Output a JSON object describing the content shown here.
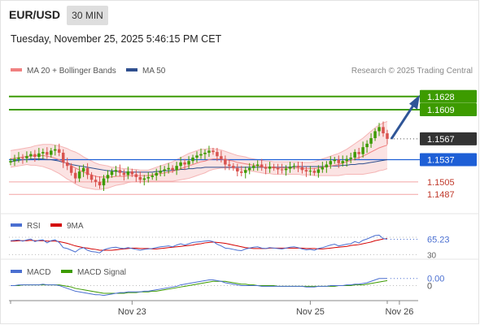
{
  "header": {
    "symbol": "EUR/USD",
    "timeframe": "30 MIN",
    "datetime": "Tuesday, November 25, 2025 5:46:15 PM CET"
  },
  "legend": {
    "items": [
      {
        "label": "MA 20 + Bollinger Bands",
        "color": "#f08080"
      },
      {
        "label": "MA 50",
        "color": "#2f4f8f"
      }
    ],
    "credit": "Research © 2025 Trading Central"
  },
  "colors": {
    "up": "#3d9b00",
    "down": "#d9534f",
    "support": "#1e5fd6",
    "current": "#333333",
    "bollinger_fill": "#fbe3e3",
    "arrow": "#2f5597"
  },
  "chart_data": [
    {
      "type": "candlestick",
      "title": "EUR/USD 30 MIN",
      "ylim": [
        1.1465,
        1.165
      ],
      "x_ticks": [
        {
          "label": "Nov 23",
          "index": 30
        },
        {
          "label": "Nov 25",
          "index": 74
        },
        {
          "label": "Nov 26",
          "index": 96
        }
      ],
      "levels": [
        {
          "value": 1.1628,
          "label": "1.1628",
          "style": "resistance"
        },
        {
          "value": 1.1609,
          "label": "1.1609",
          "style": "resistance"
        },
        {
          "value": 1.1567,
          "label": "1.1567",
          "style": "current"
        },
        {
          "value": 1.1537,
          "label": "1.1537",
          "style": "support"
        },
        {
          "value": 1.1505,
          "label": "1.1505",
          "style": "minor"
        },
        {
          "value": 1.1487,
          "label": "1.1487",
          "style": "minor"
        }
      ],
      "forecast": {
        "from": 1.1567,
        "to": 1.1628
      },
      "close": [
        1.1535,
        1.1538,
        1.154,
        1.1539,
        1.1542,
        1.1545,
        1.1541,
        1.1546,
        1.1548,
        1.1544,
        1.155,
        1.1552,
        1.1547,
        1.1533,
        1.1528,
        1.1518,
        1.151,
        1.152,
        1.1525,
        1.1515,
        1.1508,
        1.1505,
        1.15,
        1.151,
        1.1515,
        1.152,
        1.1522,
        1.1518,
        1.1515,
        1.152,
        1.1516,
        1.1512,
        1.1508,
        1.151,
        1.1512,
        1.1514,
        1.1518,
        1.1521,
        1.1523,
        1.1525,
        1.1522,
        1.1528,
        1.1533,
        1.153,
        1.1535,
        1.154,
        1.1543,
        1.1545,
        1.1547,
        1.155,
        1.1548,
        1.1542,
        1.1538,
        1.153,
        1.1528,
        1.1525,
        1.152,
        1.1518,
        1.1522,
        1.1525,
        1.1528,
        1.153,
        1.1526,
        1.1524,
        1.1527,
        1.1525,
        1.1523,
        1.1522,
        1.1524,
        1.1527,
        1.1528,
        1.1526,
        1.1522,
        1.152,
        1.1521,
        1.1518,
        1.1523,
        1.1526,
        1.153,
        1.1535,
        1.1537,
        1.1532,
        1.1535,
        1.1538,
        1.154,
        1.1548,
        1.1545,
        1.1555,
        1.156,
        1.1568,
        1.1578,
        1.1584,
        1.1575,
        1.1567
      ],
      "ma50": [
        1.1534,
        1.1535,
        1.1536,
        1.1537,
        1.1537,
        1.1538,
        1.1538,
        1.1538,
        1.1538,
        1.1537,
        1.1537,
        1.1536,
        1.1535,
        1.1533,
        1.1532,
        1.153,
        1.1529,
        1.1528,
        1.1527,
        1.1526,
        1.1525,
        1.1524,
        1.1523,
        1.1522,
        1.1521,
        1.1521,
        1.152,
        1.152,
        1.1519,
        1.1519,
        1.1519,
        1.1519,
        1.1519,
        1.1519,
        1.1519,
        1.1519,
        1.152,
        1.152,
        1.1521,
        1.1521,
        1.1522,
        1.1522,
        1.1523,
        1.1523,
        1.1524,
        1.1524,
        1.1525,
        1.1525,
        1.1526,
        1.1526,
        1.1526,
        1.1526,
        1.1526,
        1.1526,
        1.1526,
        1.1526,
        1.1526,
        1.1526,
        1.1526,
        1.1526,
        1.1526,
        1.1526,
        1.1526,
        1.1526,
        1.1526,
        1.1526,
        1.1526,
        1.1526,
        1.1526,
        1.1526,
        1.1527,
        1.1527,
        1.1527,
        1.1527,
        1.1527,
        1.1527,
        1.1527,
        1.1527,
        1.1527,
        1.1528,
        1.1528,
        1.1528,
        1.1529,
        1.1529,
        1.153,
        1.153,
        1.1531,
        1.1531,
        1.1532,
        1.1533,
        1.1534,
        1.1535,
        1.1536,
        1.1537
      ],
      "ma20": [
        1.1538,
        1.1539,
        1.154,
        1.1541,
        1.1542,
        1.1542,
        1.1543,
        1.1543,
        1.1543,
        1.1542,
        1.1541,
        1.1539,
        1.1537,
        1.1534,
        1.1531,
        1.1528,
        1.1525,
        1.1522,
        1.1519,
        1.1517,
        1.1515,
        1.1513,
        1.1512,
        1.1512,
        1.1512,
        1.1512,
        1.1513,
        1.1513,
        1.1513,
        1.1514,
        1.1514,
        1.1514,
        1.1514,
        1.1514,
        1.1514,
        1.1515,
        1.1516,
        1.1517,
        1.1518,
        1.1519,
        1.152,
        1.1522,
        1.1524,
        1.1526,
        1.1528,
        1.153,
        1.1532,
        1.1534,
        1.1535,
        1.1537,
        1.1538,
        1.1538,
        1.1538,
        1.1537,
        1.1536,
        1.1535,
        1.1533,
        1.1532,
        1.1531,
        1.153,
        1.1529,
        1.1528,
        1.1527,
        1.1526,
        1.1526,
        1.1525,
        1.1525,
        1.1525,
        1.1525,
        1.1525,
        1.1525,
        1.1525,
        1.1524,
        1.1524,
        1.1524,
        1.1524,
        1.1525,
        1.1526,
        1.1527,
        1.1528,
        1.1529,
        1.153,
        1.1532,
        1.1534,
        1.1536,
        1.1538,
        1.154,
        1.1542,
        1.1545,
        1.1548,
        1.1551,
        1.1554,
        1.1556,
        1.1558
      ],
      "bb_width": [
        0.0012,
        0.0012,
        0.0012,
        0.0012,
        0.0012,
        0.0013,
        0.0014,
        0.0015,
        0.0016,
        0.0017,
        0.0018,
        0.0019,
        0.002,
        0.0021,
        0.0022,
        0.0022,
        0.0023,
        0.0023,
        0.0022,
        0.0021,
        0.002,
        0.0019,
        0.0018,
        0.0017,
        0.0016,
        0.0014,
        0.0013,
        0.0012,
        0.0011,
        0.001,
        0.0009,
        0.0009,
        0.0008,
        0.0008,
        0.0008,
        0.0009,
        0.001,
        0.0011,
        0.0012,
        0.0013,
        0.0014,
        0.0015,
        0.0016,
        0.0017,
        0.0018,
        0.0018,
        0.0018,
        0.0018,
        0.0017,
        0.0016,
        0.0015,
        0.0014,
        0.0013,
        0.0012,
        0.0011,
        0.001,
        0.001,
        0.001,
        0.001,
        0.0009,
        0.0009,
        0.0009,
        0.0009,
        0.0009,
        0.0009,
        0.0009,
        0.0009,
        0.0009,
        0.0009,
        0.0009,
        0.0009,
        0.0009,
        0.0009,
        0.0009,
        0.0009,
        0.001,
        0.0011,
        0.0012,
        0.0013,
        0.0014,
        0.0015,
        0.0016,
        0.0017,
        0.0018,
        0.002,
        0.0022,
        0.0024,
        0.0026,
        0.0028,
        0.003,
        0.0032,
        0.0033,
        0.0034,
        0.0034
      ]
    },
    {
      "type": "line",
      "title": "RSI",
      "series": [
        {
          "name": "RSI",
          "color": "#4a6fd1"
        },
        {
          "name": "9MA",
          "color": "#d40000"
        }
      ],
      "ylim": [
        25,
        85
      ],
      "levels": [
        {
          "value": 70,
          "label": "70"
        },
        {
          "value": 30,
          "label": "30"
        }
      ],
      "current_value": "65.23",
      "rsi": [
        62,
        63,
        64,
        61,
        64,
        66,
        60,
        63,
        64,
        57,
        62,
        64,
        58,
        46,
        44,
        40,
        36,
        43,
        46,
        40,
        37,
        36,
        34,
        41,
        44,
        46,
        47,
        45,
        44,
        46,
        44,
        42,
        40,
        42,
        43,
        44,
        46,
        48,
        49,
        50,
        48,
        52,
        55,
        52,
        55,
        58,
        59,
        60,
        61,
        62,
        60,
        54,
        50,
        45,
        44,
        42,
        40,
        39,
        43,
        45,
        47,
        48,
        45,
        44,
        46,
        45,
        44,
        43,
        45,
        47,
        48,
        46,
        43,
        41,
        42,
        40,
        44,
        46,
        49,
        52,
        54,
        50,
        52,
        54,
        55,
        60,
        57,
        63,
        66,
        70,
        74,
        75,
        67,
        65.23
      ],
      "ma9": [
        61,
        61,
        62,
        62,
        62,
        63,
        62,
        62,
        62,
        61,
        61,
        61,
        60,
        58,
        56,
        53,
        50,
        48,
        46,
        45,
        43,
        42,
        40,
        40,
        40,
        40,
        41,
        42,
        43,
        44,
        45,
        45,
        44,
        44,
        44,
        43,
        43,
        44,
        45,
        46,
        47,
        48,
        49,
        50,
        51,
        52,
        54,
        55,
        57,
        58,
        59,
        58,
        57,
        56,
        54,
        52,
        50,
        48,
        46,
        45,
        44,
        44,
        44,
        44,
        45,
        45,
        45,
        45,
        45,
        45,
        45,
        45,
        45,
        44,
        44,
        44,
        43,
        43,
        44,
        45,
        46,
        47,
        48,
        49,
        51,
        52,
        53,
        55,
        57,
        59,
        62,
        64,
        66,
        67
      ]
    },
    {
      "type": "line",
      "title": "MACD",
      "series": [
        {
          "name": "MACD",
          "color": "#4a6fd1"
        },
        {
          "name": "MACD Signal",
          "color": "#3d9b00"
        }
      ],
      "ylim": [
        -0.0019,
        0.0012
      ],
      "levels": [
        {
          "value": 0,
          "label": "0"
        }
      ],
      "current_value": "0.00",
      "macd": [
        0.0,
        0.0,
        0.0001,
        0.0001,
        0.0001,
        0.0001,
        0.0001,
        0.0001,
        0.0002,
        0.0001,
        0.0001,
        0.0001,
        0.0,
        -0.0002,
        -0.0004,
        -0.0006,
        -0.0008,
        -0.0009,
        -0.001,
        -0.0011,
        -0.0012,
        -0.0013,
        -0.0013,
        -0.0014,
        -0.0013,
        -0.0012,
        -0.0011,
        -0.001,
        -0.001,
        -0.0009,
        -0.0009,
        -0.0009,
        -0.0009,
        -0.0008,
        -0.0008,
        -0.0007,
        -0.0006,
        -0.0005,
        -0.0004,
        -0.0003,
        -0.0002,
        -0.0001,
        0.0001,
        0.0002,
        0.0003,
        0.0004,
        0.0005,
        0.0006,
        0.0007,
        0.0008,
        0.0008,
        0.0007,
        0.0006,
        0.0004,
        0.0003,
        0.0002,
        0.0001,
        0.0,
        0.0,
        0.0,
        0.0,
        0.0,
        -0.0001,
        -0.0001,
        -0.0001,
        -0.0001,
        -0.0001,
        -0.0001,
        -0.0001,
        -0.0001,
        -0.0001,
        -0.0001,
        -0.0001,
        -0.0002,
        -0.0002,
        -0.0002,
        -0.0001,
        -0.0001,
        -0.0001,
        0.0,
        0.0,
        0.0,
        0.0,
        0.0001,
        0.0001,
        0.0002,
        0.0002,
        0.0003,
        0.0004,
        0.0006,
        0.0008,
        0.001,
        0.001,
        0.001
      ],
      "signal": [
        0.0,
        0.0,
        0.0,
        0.0001,
        0.0001,
        0.0001,
        0.0001,
        0.0001,
        0.0001,
        0.0001,
        0.0001,
        0.0001,
        0.0001,
        0.0,
        -0.0001,
        -0.0002,
        -0.0004,
        -0.0005,
        -0.0006,
        -0.0007,
        -0.0008,
        -0.0009,
        -0.001,
        -0.0011,
        -0.0011,
        -0.0011,
        -0.0011,
        -0.0011,
        -0.0011,
        -0.001,
        -0.001,
        -0.001,
        -0.0009,
        -0.0009,
        -0.0009,
        -0.0008,
        -0.0008,
        -0.0007,
        -0.0006,
        -0.0005,
        -0.0004,
        -0.0003,
        -0.0002,
        -0.0001,
        0.0,
        0.0001,
        0.0002,
        0.0003,
        0.0004,
        0.0005,
        0.0006,
        0.0006,
        0.0006,
        0.0006,
        0.0005,
        0.0004,
        0.0003,
        0.0002,
        0.0002,
        0.0001,
        0.0001,
        0.0,
        0.0,
        0.0,
        0.0,
        0.0,
        -0.0001,
        -0.0001,
        -0.0001,
        -0.0001,
        -0.0001,
        -0.0001,
        -0.0001,
        -0.0001,
        -0.0001,
        -0.0001,
        -0.0001,
        -0.0001,
        -0.0001,
        -0.0001,
        -0.0001,
        0.0,
        0.0,
        0.0,
        0.0,
        0.0001,
        0.0001,
        0.0001,
        0.0002,
        0.0003,
        0.0004,
        0.0005,
        0.0006,
        0.0007
      ]
    }
  ]
}
